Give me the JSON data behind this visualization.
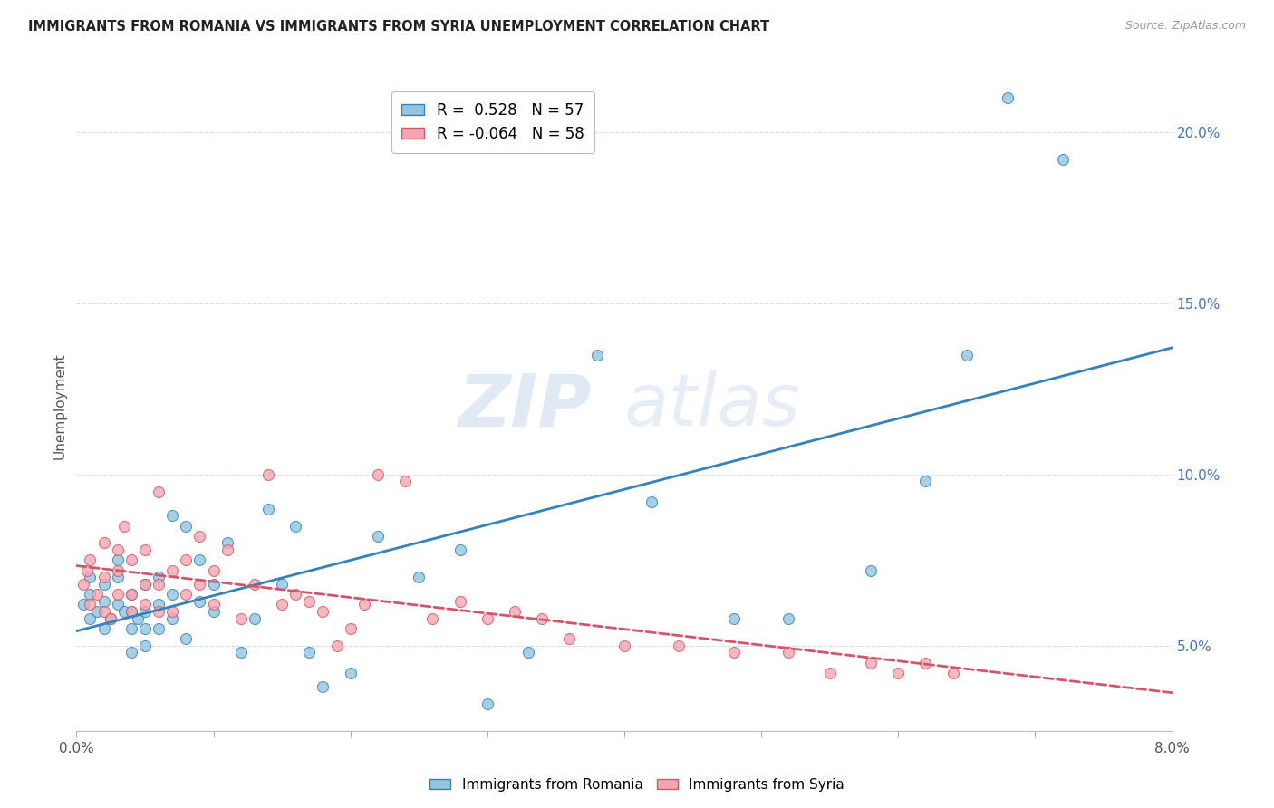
{
  "title": "IMMIGRANTS FROM ROMANIA VS IMMIGRANTS FROM SYRIA UNEMPLOYMENT CORRELATION CHART",
  "source": "Source: ZipAtlas.com",
  "ylabel": "Unemployment",
  "legend_romania": "Immigrants from Romania",
  "legend_syria": "Immigrants from Syria",
  "r_romania": "0.528",
  "n_romania": "57",
  "r_syria": "-0.064",
  "n_syria": "58",
  "color_romania": "#92c5de",
  "color_syria": "#f4a6b0",
  "color_romania_line": "#3182bd",
  "color_syria_line": "#d6546a",
  "watermark_zip": "ZIP",
  "watermark_atlas": "atlas",
  "xmin": 0.0,
  "xmax": 0.08,
  "ymin": 0.025,
  "ymax": 0.215,
  "yticks": [
    0.05,
    0.1,
    0.15,
    0.2
  ],
  "ytick_labels": [
    "5.0%",
    "10.0%",
    "15.0%",
    "20.0%"
  ],
  "romania_scatter_x": [
    0.0005,
    0.001,
    0.001,
    0.001,
    0.0015,
    0.002,
    0.002,
    0.002,
    0.0025,
    0.003,
    0.003,
    0.003,
    0.0035,
    0.004,
    0.004,
    0.004,
    0.004,
    0.0045,
    0.005,
    0.005,
    0.005,
    0.005,
    0.006,
    0.006,
    0.006,
    0.007,
    0.007,
    0.007,
    0.008,
    0.008,
    0.009,
    0.009,
    0.01,
    0.01,
    0.011,
    0.012,
    0.013,
    0.014,
    0.015,
    0.016,
    0.017,
    0.018,
    0.02,
    0.022,
    0.025,
    0.028,
    0.03,
    0.033,
    0.038,
    0.042,
    0.048,
    0.052,
    0.058,
    0.062,
    0.065,
    0.068,
    0.072
  ],
  "romania_scatter_y": [
    0.062,
    0.058,
    0.065,
    0.07,
    0.06,
    0.055,
    0.063,
    0.068,
    0.058,
    0.062,
    0.07,
    0.075,
    0.06,
    0.048,
    0.055,
    0.06,
    0.065,
    0.058,
    0.05,
    0.055,
    0.06,
    0.068,
    0.055,
    0.062,
    0.07,
    0.058,
    0.065,
    0.088,
    0.052,
    0.085,
    0.075,
    0.063,
    0.06,
    0.068,
    0.08,
    0.048,
    0.058,
    0.09,
    0.068,
    0.085,
    0.048,
    0.038,
    0.042,
    0.082,
    0.07,
    0.078,
    0.033,
    0.048,
    0.135,
    0.092,
    0.058,
    0.058,
    0.072,
    0.098,
    0.135,
    0.21,
    0.192
  ],
  "syria_scatter_x": [
    0.0005,
    0.0008,
    0.001,
    0.001,
    0.0015,
    0.002,
    0.002,
    0.002,
    0.0025,
    0.003,
    0.003,
    0.003,
    0.0035,
    0.004,
    0.004,
    0.004,
    0.005,
    0.005,
    0.005,
    0.006,
    0.006,
    0.006,
    0.007,
    0.007,
    0.008,
    0.008,
    0.009,
    0.009,
    0.01,
    0.01,
    0.011,
    0.012,
    0.013,
    0.014,
    0.015,
    0.016,
    0.017,
    0.018,
    0.019,
    0.02,
    0.021,
    0.022,
    0.024,
    0.026,
    0.028,
    0.03,
    0.032,
    0.034,
    0.036,
    0.04,
    0.044,
    0.048,
    0.052,
    0.055,
    0.058,
    0.06,
    0.062,
    0.064
  ],
  "syria_scatter_y": [
    0.068,
    0.072,
    0.062,
    0.075,
    0.065,
    0.06,
    0.07,
    0.08,
    0.058,
    0.065,
    0.072,
    0.078,
    0.085,
    0.06,
    0.065,
    0.075,
    0.062,
    0.068,
    0.078,
    0.06,
    0.068,
    0.095,
    0.06,
    0.072,
    0.065,
    0.075,
    0.068,
    0.082,
    0.062,
    0.072,
    0.078,
    0.058,
    0.068,
    0.1,
    0.062,
    0.065,
    0.063,
    0.06,
    0.05,
    0.055,
    0.062,
    0.1,
    0.098,
    0.058,
    0.063,
    0.058,
    0.06,
    0.058,
    0.052,
    0.05,
    0.05,
    0.048,
    0.048,
    0.042,
    0.045,
    0.042,
    0.045,
    0.042
  ]
}
